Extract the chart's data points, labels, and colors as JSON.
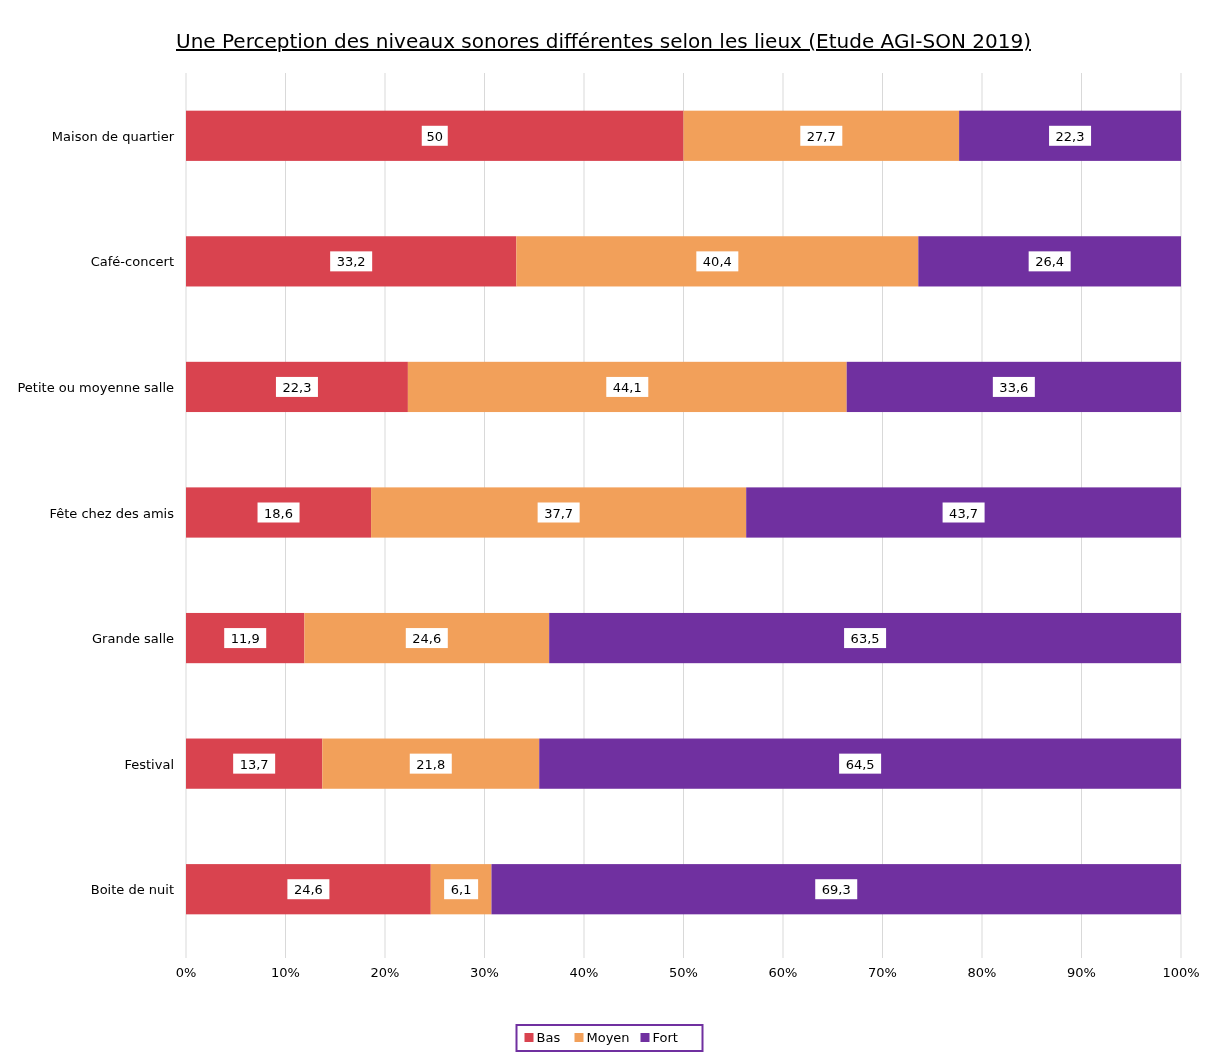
{
  "chart_data": {
    "type": "bar",
    "orientation": "horizontal",
    "stacked": true,
    "title": "Une Perception des niveaux sonores différentes selon les lieux (Etude AGI-SON 2019)",
    "categories": [
      "Maison de quartier",
      "Café-concert",
      "Petite ou moyenne salle",
      "Fête chez des amis",
      "Grande salle",
      "Festival",
      "Boite de nuit"
    ],
    "series": [
      {
        "name": "Bas",
        "color": "#d9434f",
        "values": [
          50,
          33.2,
          22.3,
          18.6,
          11.9,
          13.7,
          24.6
        ],
        "value_labels": [
          "50",
          "33,2",
          "22,3",
          "18,6",
          "11,9",
          "13,7",
          "24,6"
        ]
      },
      {
        "name": "Moyen",
        "color": "#f2a05a",
        "values": [
          27.7,
          40.4,
          44.1,
          37.7,
          24.6,
          21.8,
          6.1
        ],
        "value_labels": [
          "27,7",
          "40,4",
          "44,1",
          "37,7",
          "24,6",
          "21,8",
          "6,1"
        ]
      },
      {
        "name": "Fort",
        "color": "#7030a0",
        "values": [
          22.3,
          26.4,
          33.6,
          43.7,
          63.5,
          64.5,
          69.3
        ],
        "value_labels": [
          "22,3",
          "26,4",
          "33,6",
          "43,7",
          "63,5",
          "64,5",
          "69,3"
        ]
      }
    ],
    "xlim": [
      0,
      100
    ],
    "xticks": [
      {
        "value": 0,
        "label": "0%"
      },
      {
        "value": 10,
        "label": "10%"
      },
      {
        "value": 20,
        "label": "20%"
      },
      {
        "value": 30,
        "label": "30%"
      },
      {
        "value": 40,
        "label": "40%"
      },
      {
        "value": 50,
        "label": "50%"
      },
      {
        "value": 60,
        "label": "60%"
      },
      {
        "value": 70,
        "label": "70%"
      },
      {
        "value": 80,
        "label": "80%"
      },
      {
        "value": 90,
        "label": "90%"
      },
      {
        "value": 100,
        "label": "100%"
      }
    ],
    "grid": "x",
    "legend": "bottom"
  }
}
